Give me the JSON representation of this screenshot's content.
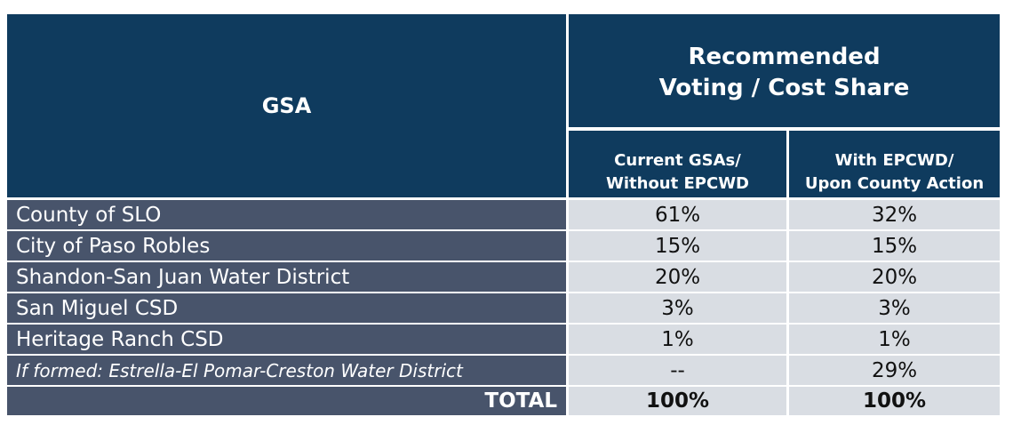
{
  "table": {
    "header": {
      "gsa": "GSA",
      "group_title": [
        "Recommended",
        "Voting / Cost Share"
      ],
      "columns": [
        [
          "Current GSAs/",
          "Without EPCWD"
        ],
        [
          "With EPCWD/",
          "Upon County Action"
        ]
      ]
    },
    "rows": [
      [
        "County of SLO",
        "61%",
        "32%"
      ],
      [
        "City of Paso Robles",
        "15%",
        "15%"
      ],
      [
        "Shandon-San Juan Water District",
        "20%",
        "20%"
      ],
      [
        "San Miguel CSD",
        "3%",
        "3%"
      ],
      [
        "Heritage Ranch CSD",
        "1%",
        "1%"
      ],
      [
        "If formed: Estrella-El Pomar-Creston Water District",
        "--",
        "29%"
      ]
    ],
    "total": [
      "TOTAL",
      "100%",
      "100%"
    ]
  }
}
